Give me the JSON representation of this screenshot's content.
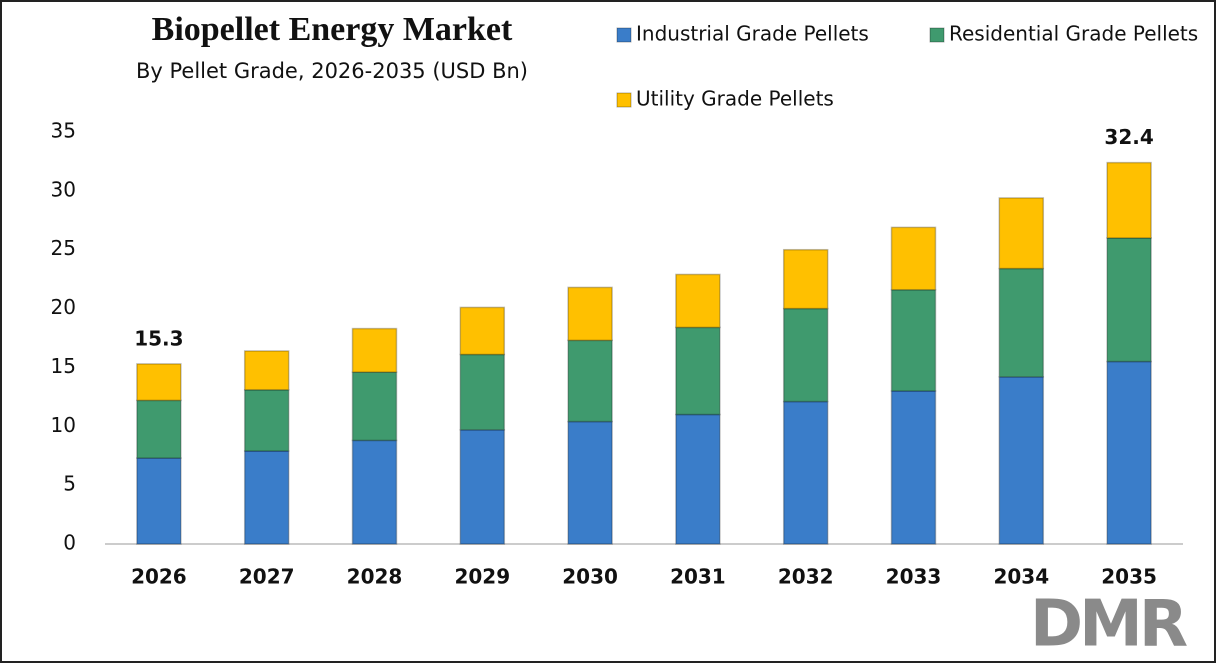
{
  "chart_data": {
    "type": "stacked-bar",
    "title": "Biopellet Energy Market",
    "subtitle": "By Pellet Grade, 2026-2035 (USD Bn)",
    "categories": [
      "2026",
      "2027",
      "2028",
      "2029",
      "2030",
      "2031",
      "2032",
      "2033",
      "2034",
      "2035"
    ],
    "series": [
      {
        "name": "Industrial Grade Pellets",
        "color": "#3a7dc9",
        "values": [
          7.3,
          7.9,
          8.8,
          9.7,
          10.4,
          11.0,
          12.1,
          13.0,
          14.2,
          15.5
        ]
      },
      {
        "name": "Residential Grade Pellets",
        "color": "#3f9a6e",
        "values": [
          4.9,
          5.2,
          5.8,
          6.4,
          6.9,
          7.4,
          7.9,
          8.6,
          9.2,
          10.5
        ]
      },
      {
        "name": "Utility Grade Pellets",
        "color": "#ffc000",
        "values": [
          3.1,
          3.3,
          3.7,
          4.0,
          4.5,
          4.5,
          5.0,
          5.3,
          6.0,
          6.4
        ]
      }
    ],
    "total_labels": [
      {
        "category": "2026",
        "value": 15.3
      },
      {
        "category": "2035",
        "value": 32.4
      }
    ],
    "ylim": [
      0,
      35
    ],
    "yticks": [
      0,
      5,
      10,
      15,
      20,
      25,
      30,
      35
    ],
    "grid": false,
    "legend": "top-right",
    "watermark": "DMR"
  }
}
